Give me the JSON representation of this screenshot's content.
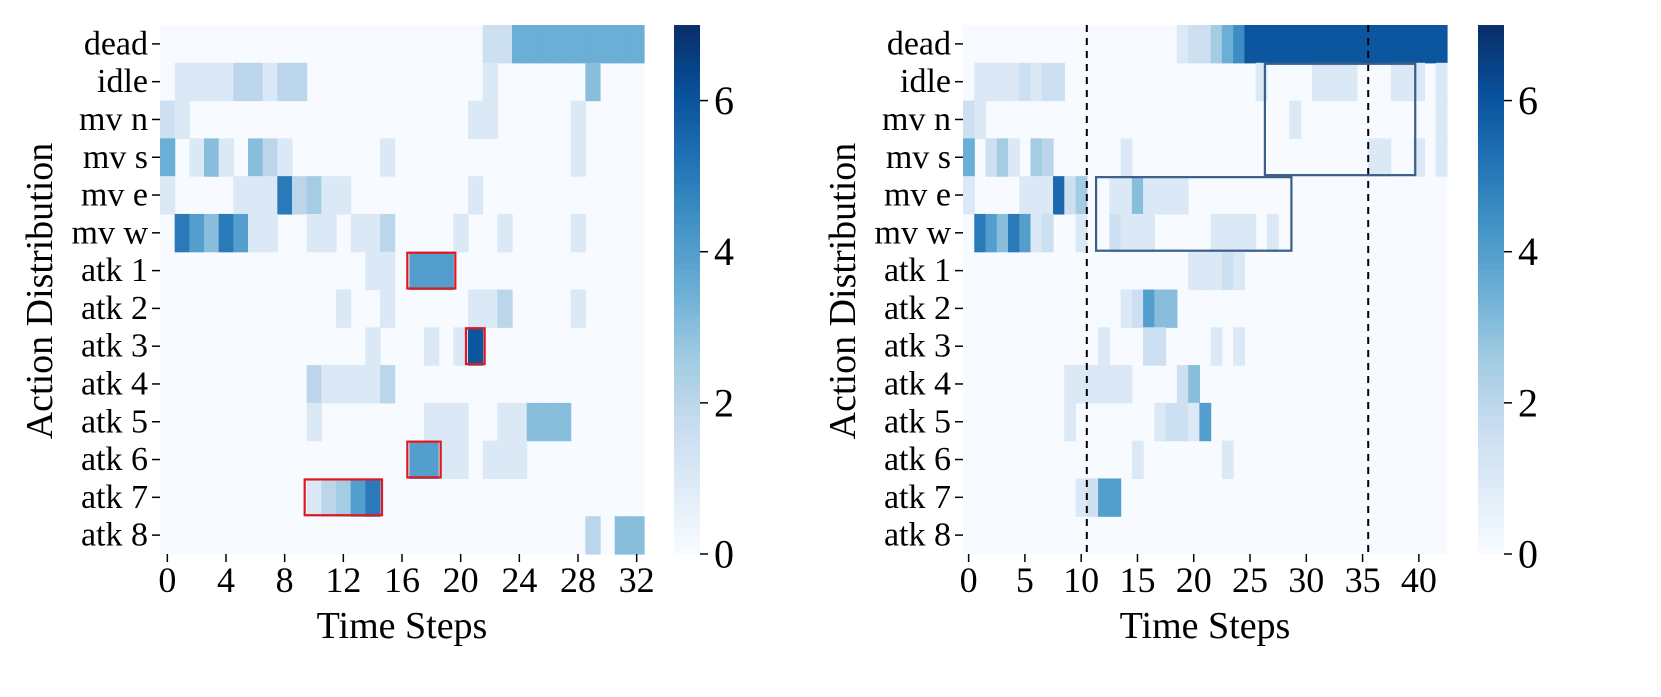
{
  "chart_data": [
    {
      "type": "heatmap",
      "title": "",
      "xlabel": "Time Steps",
      "ylabel": "Action Distribution",
      "rows": [
        "dead",
        "idle",
        "mv n",
        "mv s",
        "mv e",
        "mv w",
        "atk 1",
        "atk 2",
        "atk 3",
        "atk 4",
        "atk 5",
        "atk 6",
        "atk 7",
        "atk 8"
      ],
      "n_cols": 33,
      "x_ticks": [
        0,
        4,
        8,
        12,
        16,
        20,
        24,
        28,
        32
      ],
      "colorbar": {
        "min": 0,
        "max": 7,
        "ticks": [
          0,
          2,
          4,
          6
        ]
      },
      "values": [
        [
          0,
          0,
          0,
          0,
          0,
          0,
          0,
          0,
          0,
          0,
          0,
          0,
          0,
          0,
          0,
          0,
          0,
          0,
          0,
          0,
          0,
          0,
          1.5,
          1.5,
          3.5,
          3.5,
          3.5,
          3.5,
          3.5,
          3.5,
          3.5,
          3.5,
          3.5
        ],
        [
          0,
          1,
          1,
          1,
          1,
          2,
          2,
          1,
          2,
          2,
          0,
          0,
          0,
          0,
          0,
          0,
          0,
          0,
          0,
          0,
          0,
          0,
          1,
          0,
          0,
          0,
          0,
          0,
          0,
          3,
          0,
          0,
          0
        ],
        [
          1.5,
          1,
          0,
          0,
          0,
          0,
          0,
          0,
          0,
          0,
          0,
          0,
          0,
          0,
          0,
          0,
          0,
          0,
          0,
          0,
          0,
          1,
          1,
          0,
          0,
          0,
          0,
          0,
          1,
          0,
          0,
          0,
          0
        ],
        [
          3.5,
          0,
          1,
          3,
          1,
          0,
          3,
          2,
          1,
          0,
          0,
          0,
          0,
          0,
          0,
          1,
          0,
          0,
          0,
          0,
          0,
          0,
          0,
          0,
          0,
          0,
          0,
          0,
          1,
          0,
          0,
          0,
          0
        ],
        [
          1,
          0,
          0,
          0,
          0,
          1,
          1,
          1,
          5,
          2,
          2.5,
          1,
          1,
          0,
          0,
          0,
          0,
          0,
          0,
          0,
          0,
          1,
          0,
          0,
          0,
          0,
          0,
          0,
          0,
          0,
          0,
          0
        ],
        [
          0,
          5,
          4,
          3,
          5,
          4,
          1,
          1,
          0,
          0,
          1,
          1,
          0,
          1,
          1,
          2,
          0,
          0,
          0,
          0,
          1,
          0,
          0,
          1,
          0,
          0,
          0,
          0,
          1,
          0,
          0,
          0,
          0
        ],
        [
          0,
          0,
          0,
          0,
          0,
          0,
          0,
          0,
          0,
          0,
          0,
          0,
          0,
          0,
          1,
          1,
          0,
          4,
          4,
          4,
          0,
          0,
          0,
          0,
          0,
          0,
          0,
          0,
          0,
          0,
          0,
          0,
          0
        ],
        [
          0,
          0,
          0,
          0,
          0,
          0,
          0,
          0,
          0,
          0,
          0,
          0,
          1,
          0,
          0,
          1,
          0,
          0,
          0,
          0,
          0,
          1,
          1,
          2,
          0,
          0,
          0,
          0,
          1,
          0,
          0,
          0,
          0
        ],
        [
          0,
          0,
          0,
          0,
          0,
          0,
          0,
          0,
          0,
          0,
          0,
          0,
          0,
          0,
          1,
          0,
          0,
          0,
          1,
          0,
          1,
          6,
          0,
          0,
          0,
          0,
          0,
          0,
          0,
          0,
          0,
          0,
          0
        ],
        [
          0,
          0,
          0,
          0,
          0,
          0,
          0,
          0,
          0,
          0,
          2,
          1,
          1,
          1,
          1,
          2,
          0,
          0,
          0,
          0,
          0,
          0,
          0,
          0,
          0,
          0,
          0,
          0,
          0,
          0,
          0,
          0,
          0
        ],
        [
          0,
          0,
          0,
          0,
          0,
          0,
          0,
          0,
          0,
          0,
          1,
          0,
          0,
          0,
          0,
          0,
          0,
          0,
          1,
          1,
          1,
          0,
          0,
          1,
          1,
          3,
          3,
          3,
          0,
          0,
          0,
          0,
          0
        ],
        [
          0,
          0,
          0,
          0,
          0,
          0,
          0,
          0,
          0,
          0,
          0,
          0,
          0,
          0,
          0,
          0,
          0,
          4,
          4,
          1,
          1,
          0,
          1,
          1,
          1,
          0,
          0,
          0,
          0,
          0,
          0,
          0,
          0
        ],
        [
          0,
          0,
          0,
          0,
          0,
          0,
          0,
          0,
          0,
          0,
          1,
          2,
          2.5,
          4,
          5,
          0,
          0,
          0,
          0,
          0,
          0,
          0,
          0,
          0,
          0,
          0,
          0,
          0,
          0,
          0,
          0,
          0,
          0
        ],
        [
          0,
          0,
          0,
          0,
          0,
          0,
          0,
          0,
          0,
          0,
          0,
          0,
          0,
          0,
          0,
          0,
          0,
          0,
          0,
          0,
          0,
          0,
          0,
          0,
          0,
          0,
          0,
          0,
          0,
          2,
          0,
          3,
          3
        ]
      ],
      "highlight_boxes": [
        {
          "row_start": 6,
          "row_end": 6,
          "col_start": 17,
          "col_end": 19,
          "color": "#e0191f"
        },
        {
          "row_start": 8,
          "row_end": 8,
          "col_start": 21,
          "col_end": 21,
          "color": "#e0191f"
        },
        {
          "row_start": 11,
          "row_end": 11,
          "col_start": 17,
          "col_end": 18,
          "color": "#e0191f"
        },
        {
          "row_start": 12,
          "row_end": 12,
          "col_start": 10,
          "col_end": 14,
          "color": "#e0191f"
        }
      ],
      "vlines": []
    },
    {
      "type": "heatmap",
      "title": "",
      "xlabel": "Time Steps",
      "ylabel": "Action Distribution",
      "rows": [
        "dead",
        "idle",
        "mv n",
        "mv s",
        "mv e",
        "mv w",
        "atk 1",
        "atk 2",
        "atk 3",
        "atk 4",
        "atk 5",
        "atk 6",
        "atk 7",
        "atk 8"
      ],
      "n_cols": 43,
      "x_ticks": [
        0,
        5,
        10,
        15,
        20,
        25,
        30,
        35,
        40
      ],
      "colorbar": {
        "min": 0,
        "max": 7,
        "ticks": [
          0,
          2,
          4,
          6
        ]
      },
      "values": [
        [
          0,
          0,
          0,
          0,
          0,
          0,
          0,
          0,
          0,
          0,
          0,
          0,
          0,
          0,
          0,
          0,
          0,
          0,
          0,
          1,
          1.5,
          1.5,
          2.5,
          3.5,
          4.5,
          6,
          6,
          6,
          6,
          6,
          6,
          6,
          6,
          6,
          6,
          6,
          6,
          6,
          6,
          6,
          6,
          6,
          6
        ],
        [
          0,
          1,
          1,
          1,
          1,
          1.5,
          1,
          1.5,
          1.5,
          0,
          0,
          0,
          0,
          0,
          0,
          0,
          0,
          0,
          0,
          0,
          0,
          0,
          0,
          0,
          0,
          0,
          1,
          0,
          0,
          0,
          0,
          1,
          1,
          1,
          1,
          0,
          0,
          0,
          1,
          1,
          1,
          0,
          1
        ],
        [
          1.5,
          1,
          0,
          0,
          0,
          0,
          0,
          0,
          0,
          0,
          0,
          0,
          0,
          0,
          0,
          0,
          0,
          0,
          0,
          0,
          0,
          0,
          0,
          0,
          0,
          0,
          0,
          0,
          0,
          1,
          0,
          0,
          0,
          0,
          0,
          0,
          0,
          0,
          0,
          0,
          0,
          0,
          1
        ],
        [
          3.5,
          0,
          1.5,
          2.5,
          1,
          0,
          2.5,
          2,
          0,
          0,
          0,
          0,
          0,
          0,
          1,
          0,
          0,
          0,
          0,
          0,
          0,
          0,
          0,
          0,
          0,
          0,
          0,
          0,
          0,
          0,
          0,
          0,
          0,
          0,
          0,
          0,
          1,
          1,
          0,
          0,
          1,
          0,
          1
        ],
        [
          1,
          0,
          0,
          0,
          0,
          1,
          1,
          1,
          5.5,
          1.5,
          2.5,
          0,
          0,
          1,
          1,
          3,
          1,
          1,
          1,
          1,
          0,
          0,
          0,
          0,
          0,
          0,
          0,
          0,
          0,
          0,
          0,
          0,
          0,
          0,
          0,
          0,
          0,
          0,
          0,
          0,
          0,
          0,
          0
        ],
        [
          0,
          5,
          4,
          3,
          5,
          4,
          1,
          1.5,
          0,
          0,
          1,
          0,
          0,
          1.5,
          1,
          1,
          1,
          0,
          0,
          0,
          0,
          0,
          1,
          1,
          1,
          1,
          0,
          1,
          0,
          0,
          0,
          0,
          0,
          0,
          0,
          0,
          0,
          0,
          0,
          0,
          0,
          0,
          0
        ],
        [
          0,
          0,
          0,
          0,
          0,
          0,
          0,
          0,
          0,
          0,
          0,
          0,
          0,
          0,
          0,
          0,
          0,
          0,
          0,
          0,
          1,
          1,
          1,
          1.5,
          1,
          0,
          0,
          0,
          0,
          0,
          0,
          0,
          0,
          0,
          0,
          0,
          0,
          0,
          0,
          0,
          0,
          0,
          0
        ],
        [
          0,
          0,
          0,
          0,
          0,
          0,
          0,
          0,
          0,
          0,
          0,
          0,
          0,
          0,
          1,
          1.5,
          4,
          3,
          3,
          0,
          0,
          0,
          0,
          0,
          0,
          0,
          0,
          0,
          0,
          0,
          0,
          0,
          0,
          0,
          0,
          0,
          0,
          0,
          0,
          0,
          0,
          0,
          0
        ],
        [
          0,
          0,
          0,
          0,
          0,
          0,
          0,
          0,
          0,
          0,
          0,
          0,
          1,
          0,
          0,
          0,
          1.5,
          1.5,
          0,
          0,
          0,
          0,
          1,
          0,
          1,
          0,
          0,
          0,
          0,
          0,
          0,
          0,
          0,
          0,
          0,
          0,
          0,
          0,
          0,
          0,
          0,
          0,
          0
        ],
        [
          0,
          0,
          0,
          0,
          0,
          0,
          0,
          0,
          0,
          1,
          1,
          1,
          1,
          1,
          1,
          0,
          0,
          0,
          0,
          1.5,
          3,
          0,
          0,
          0,
          0,
          0,
          0,
          0,
          0,
          0,
          0,
          0,
          0,
          0,
          0,
          0,
          0,
          0,
          0,
          0,
          0,
          0,
          0
        ],
        [
          0,
          0,
          0,
          0,
          0,
          0,
          0,
          0,
          0,
          1,
          0,
          0,
          0,
          0,
          0,
          0,
          0,
          1,
          1.5,
          1.5,
          1,
          4,
          0,
          0,
          0,
          0,
          0,
          0,
          0,
          0,
          0,
          0,
          0,
          0,
          0,
          0,
          0,
          0,
          0,
          0,
          0,
          0,
          0
        ],
        [
          0,
          0,
          0,
          0,
          0,
          0,
          0,
          0,
          0,
          0,
          0,
          0,
          0,
          0,
          0,
          1,
          0,
          0,
          0,
          0,
          0,
          0,
          0,
          1,
          0,
          0,
          0,
          0,
          0,
          0,
          0,
          0,
          0,
          0,
          0,
          0,
          0,
          0,
          0,
          0,
          0,
          0,
          0
        ],
        [
          0,
          0,
          0,
          0,
          0,
          0,
          0,
          0,
          0,
          0,
          1,
          1.5,
          4,
          4,
          0,
          0,
          0,
          0,
          0,
          0,
          0,
          0,
          0,
          0,
          0,
          0,
          0,
          0,
          0,
          0,
          0,
          0,
          0,
          0,
          0,
          0,
          0,
          0,
          0,
          0,
          0,
          0,
          0
        ],
        [
          0,
          0,
          0,
          0,
          0,
          0,
          0,
          0,
          0,
          0,
          0,
          0,
          0,
          0,
          0,
          0,
          0,
          0,
          0,
          0,
          0,
          0,
          0,
          0,
          0,
          0,
          0,
          0,
          0,
          0,
          0,
          0,
          0,
          0,
          0,
          0,
          0,
          0,
          0,
          0,
          0,
          0,
          0
        ]
      ],
      "highlight_boxes": [
        {
          "row_start": 1,
          "row_end": 3,
          "col_start": 27,
          "col_end": 39,
          "color": "#3b5f86"
        },
        {
          "row_start": 4,
          "row_end": 5,
          "col_start": 12,
          "col_end": 28,
          "color": "#3b5f86"
        }
      ],
      "vlines": [
        11,
        36
      ]
    }
  ]
}
